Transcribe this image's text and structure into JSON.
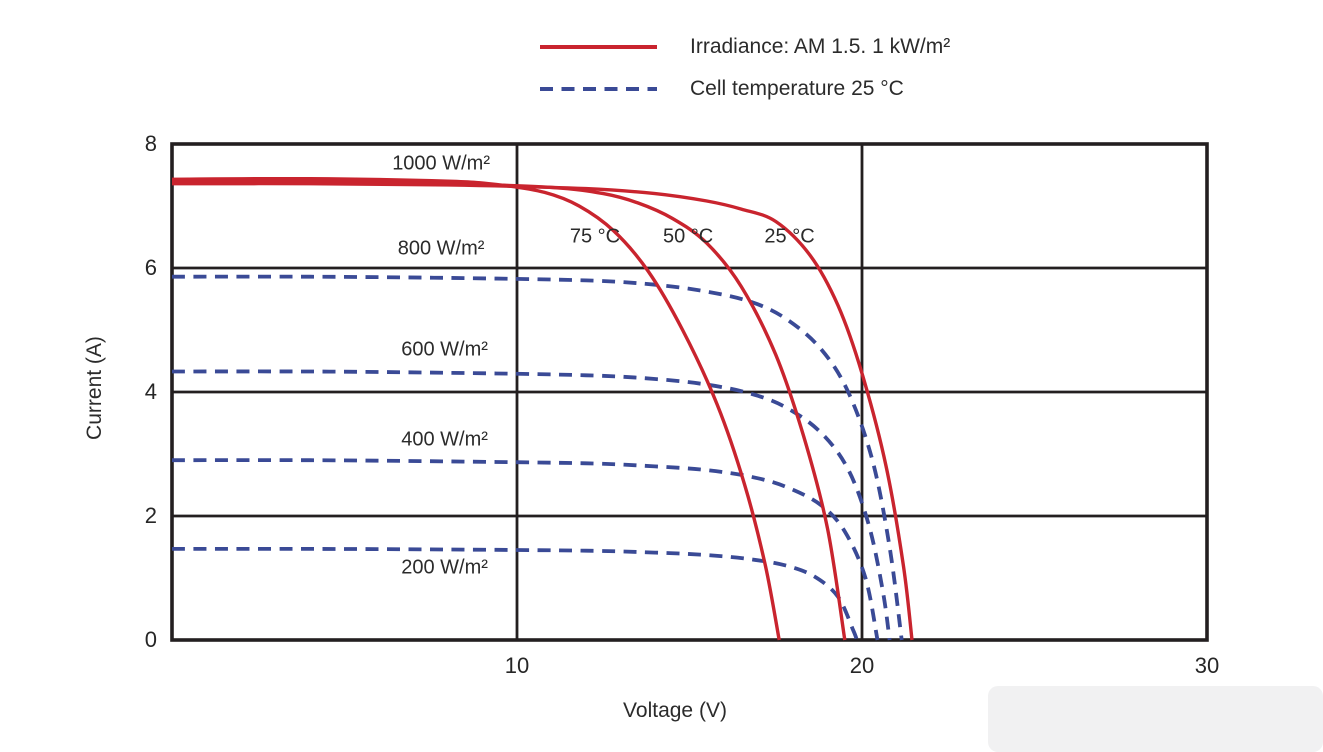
{
  "colors": {
    "red": "#c9242e",
    "blue": "#3a4a96",
    "axis": "#231f20",
    "text": "#2b2b2b",
    "background": "#ffffff"
  },
  "legend": {
    "items": [
      {
        "label": "Irradiance: AM 1.5. 1 kW/m²",
        "color": "red",
        "style": "solid"
      },
      {
        "label": "Cell temperature 25 °C",
        "color": "blue",
        "style": "dashed"
      }
    ]
  },
  "chart_data": {
    "type": "line",
    "title": "",
    "xlabel": "Voltage (V)",
    "ylabel": "Current (A)",
    "xlim": [
      0,
      30
    ],
    "ylim": [
      0,
      8
    ],
    "xticks": [
      10,
      20,
      30
    ],
    "yticks": [
      0,
      2,
      4,
      6,
      8
    ],
    "x_gridlines": [
      10,
      20
    ],
    "y_gridlines": [
      2,
      4,
      6
    ],
    "grid": true,
    "legend_position": "top-center",
    "series": [
      {
        "name": "1000 W/m2 at 25 C",
        "irradiance_w_m2": 1000,
        "temperature_c": 25,
        "color": "red",
        "style": "solid",
        "points": [
          [
            0,
            7.36
          ],
          [
            4,
            7.36
          ],
          [
            8,
            7.34
          ],
          [
            12,
            7.28
          ],
          [
            14,
            7.2
          ],
          [
            15.5,
            7.08
          ],
          [
            16.5,
            6.95
          ],
          [
            17.5,
            6.75
          ],
          [
            18.5,
            6.2
          ],
          [
            19.3,
            5.4
          ],
          [
            20.0,
            4.3
          ],
          [
            20.7,
            2.8
          ],
          [
            21.2,
            1.2
          ],
          [
            21.45,
            0
          ]
        ]
      },
      {
        "name": "1000 W/m2 at 50 C",
        "irradiance_w_m2": 1000,
        "temperature_c": 50,
        "color": "red",
        "style": "solid",
        "points": [
          [
            0,
            7.4
          ],
          [
            4,
            7.4
          ],
          [
            8,
            7.36
          ],
          [
            11,
            7.3
          ],
          [
            12.5,
            7.2
          ],
          [
            13.5,
            7.05
          ],
          [
            14.5,
            6.8
          ],
          [
            15.5,
            6.4
          ],
          [
            16.5,
            5.7
          ],
          [
            17.5,
            4.6
          ],
          [
            18.3,
            3.3
          ],
          [
            19.0,
            1.8
          ],
          [
            19.5,
            0
          ]
        ]
      },
      {
        "name": "1000 W/m2 at 75 C",
        "irradiance_w_m2": 1000,
        "temperature_c": 75,
        "color": "red",
        "style": "solid",
        "points": [
          [
            0,
            7.43
          ],
          [
            4,
            7.44
          ],
          [
            8,
            7.4
          ],
          [
            9.5,
            7.34
          ],
          [
            10.8,
            7.22
          ],
          [
            11.8,
            7.0
          ],
          [
            12.8,
            6.6
          ],
          [
            13.8,
            5.95
          ],
          [
            14.8,
            5.0
          ],
          [
            15.8,
            3.8
          ],
          [
            16.6,
            2.5
          ],
          [
            17.2,
            1.2
          ],
          [
            17.6,
            0
          ]
        ]
      },
      {
        "name": "800 W/m2 at 25 C",
        "irradiance_w_m2": 800,
        "temperature_c": 25,
        "color": "blue",
        "style": "dashed",
        "points": [
          [
            0,
            5.86
          ],
          [
            4,
            5.86
          ],
          [
            8,
            5.84
          ],
          [
            12,
            5.8
          ],
          [
            14,
            5.73
          ],
          [
            15.5,
            5.62
          ],
          [
            16.8,
            5.45
          ],
          [
            17.8,
            5.18
          ],
          [
            18.8,
            4.7
          ],
          [
            19.6,
            4.0
          ],
          [
            20.3,
            2.9
          ],
          [
            20.8,
            1.5
          ],
          [
            21.15,
            0
          ]
        ]
      },
      {
        "name": "600 W/m2 at 25 C",
        "irradiance_w_m2": 600,
        "temperature_c": 25,
        "color": "blue",
        "style": "dashed",
        "points": [
          [
            0,
            4.33
          ],
          [
            4,
            4.33
          ],
          [
            8,
            4.31
          ],
          [
            12,
            4.27
          ],
          [
            14,
            4.21
          ],
          [
            15.5,
            4.12
          ],
          [
            16.8,
            3.97
          ],
          [
            17.8,
            3.75
          ],
          [
            18.8,
            3.35
          ],
          [
            19.6,
            2.75
          ],
          [
            20.2,
            1.85
          ],
          [
            20.6,
            0.8
          ],
          [
            20.8,
            0
          ]
        ]
      },
      {
        "name": "400 W/m2 at 25 C",
        "irradiance_w_m2": 400,
        "temperature_c": 25,
        "color": "blue",
        "style": "dashed",
        "points": [
          [
            0,
            2.9
          ],
          [
            4,
            2.9
          ],
          [
            8,
            2.88
          ],
          [
            12,
            2.85
          ],
          [
            14,
            2.8
          ],
          [
            15.5,
            2.74
          ],
          [
            16.8,
            2.63
          ],
          [
            17.8,
            2.47
          ],
          [
            18.8,
            2.18
          ],
          [
            19.5,
            1.75
          ],
          [
            20.1,
            1.0
          ],
          [
            20.45,
            0
          ]
        ]
      },
      {
        "name": "200 W/m2 at 25 C",
        "irradiance_w_m2": 200,
        "temperature_c": 25,
        "color": "blue",
        "style": "dashed",
        "points": [
          [
            0,
            1.47
          ],
          [
            4,
            1.47
          ],
          [
            8,
            1.46
          ],
          [
            12,
            1.44
          ],
          [
            14,
            1.41
          ],
          [
            15.5,
            1.37
          ],
          [
            16.8,
            1.3
          ],
          [
            17.8,
            1.2
          ],
          [
            18.6,
            1.03
          ],
          [
            19.3,
            0.7
          ],
          [
            19.75,
            0.15
          ],
          [
            19.85,
            0
          ]
        ]
      }
    ],
    "annotations": [
      {
        "text": "1000 W/m²",
        "x": 7.8,
        "y": 7.68
      },
      {
        "text": "800 W/m²",
        "x": 7.8,
        "y": 6.3
      },
      {
        "text": "600 W/m²",
        "x": 7.9,
        "y": 4.68
      },
      {
        "text": "400 W/m²",
        "x": 7.9,
        "y": 3.22
      },
      {
        "text": "200 W/m²",
        "x": 7.9,
        "y": 1.16
      },
      {
        "text": "75 °C",
        "x": 12.26,
        "y": 6.5
      },
      {
        "text": "50 °C",
        "x": 14.96,
        "y": 6.5
      },
      {
        "text": "25 °C",
        "x": 17.9,
        "y": 6.5
      }
    ]
  }
}
